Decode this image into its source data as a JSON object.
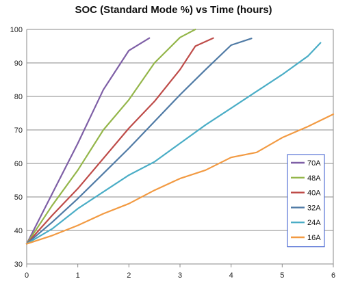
{
  "chart_data": {
    "type": "line",
    "title": "SOC (Standard Mode %) vs Time (hours)",
    "xlabel": "",
    "ylabel": "",
    "xlim": [
      0,
      6
    ],
    "ylim": [
      30,
      100
    ],
    "x_ticks": [
      "0",
      "1",
      "2",
      "3",
      "4",
      "5",
      "6"
    ],
    "y_ticks": [
      "30",
      "40",
      "50",
      "60",
      "70",
      "80",
      "90",
      "100"
    ],
    "grid": "horizontal",
    "legend_position": "right",
    "series": [
      {
        "name": "70A",
        "color": "#7e5fa6",
        "x": [
          0,
          0.5,
          1.0,
          1.5,
          2.0,
          2.4
        ],
        "y": [
          36,
          51,
          66,
          82,
          93.7,
          97.4
        ]
      },
      {
        "name": "48A",
        "color": "#94b64a",
        "x": [
          0,
          0.5,
          1.0,
          1.5,
          2.0,
          2.5,
          3.0,
          3.3
        ],
        "y": [
          36,
          47.5,
          58,
          70,
          79,
          90,
          97.6,
          100
        ]
      },
      {
        "name": "40A",
        "color": "#be4b48",
        "x": [
          0,
          0.5,
          1.0,
          1.5,
          2.0,
          2.5,
          3.0,
          3.3,
          3.65
        ],
        "y": [
          36,
          44.5,
          52.5,
          61.5,
          70.5,
          78.5,
          88,
          95,
          97.4
        ]
      },
      {
        "name": "32A",
        "color": "#4f7aa5",
        "x": [
          0,
          0.5,
          1.0,
          1.5,
          2.0,
          2.5,
          3.0,
          3.5,
          4.0,
          4.4
        ],
        "y": [
          36,
          42.5,
          49.5,
          57,
          64.5,
          72.5,
          80.5,
          88,
          95.3,
          97.3
        ]
      },
      {
        "name": "24A",
        "color": "#4aadc6",
        "x": [
          0,
          0.5,
          1.0,
          1.5,
          2.0,
          2.5,
          3.0,
          3.5,
          4.0,
          4.5,
          5.0,
          5.5,
          5.75
        ],
        "y": [
          36,
          40.5,
          46.5,
          51.5,
          56.5,
          60.5,
          66,
          71.5,
          76.5,
          81.5,
          86.5,
          92,
          96
        ]
      },
      {
        "name": "16A",
        "color": "#f29a42",
        "x": [
          0,
          0.5,
          1.0,
          1.5,
          2.0,
          2.5,
          3.0,
          3.5,
          4.0,
          4.5,
          5.0,
          5.5,
          6.0
        ],
        "y": [
          36,
          38.5,
          41.5,
          45,
          48,
          52,
          55.5,
          58,
          61.8,
          63.3,
          67.7,
          71,
          74.7
        ]
      }
    ]
  }
}
